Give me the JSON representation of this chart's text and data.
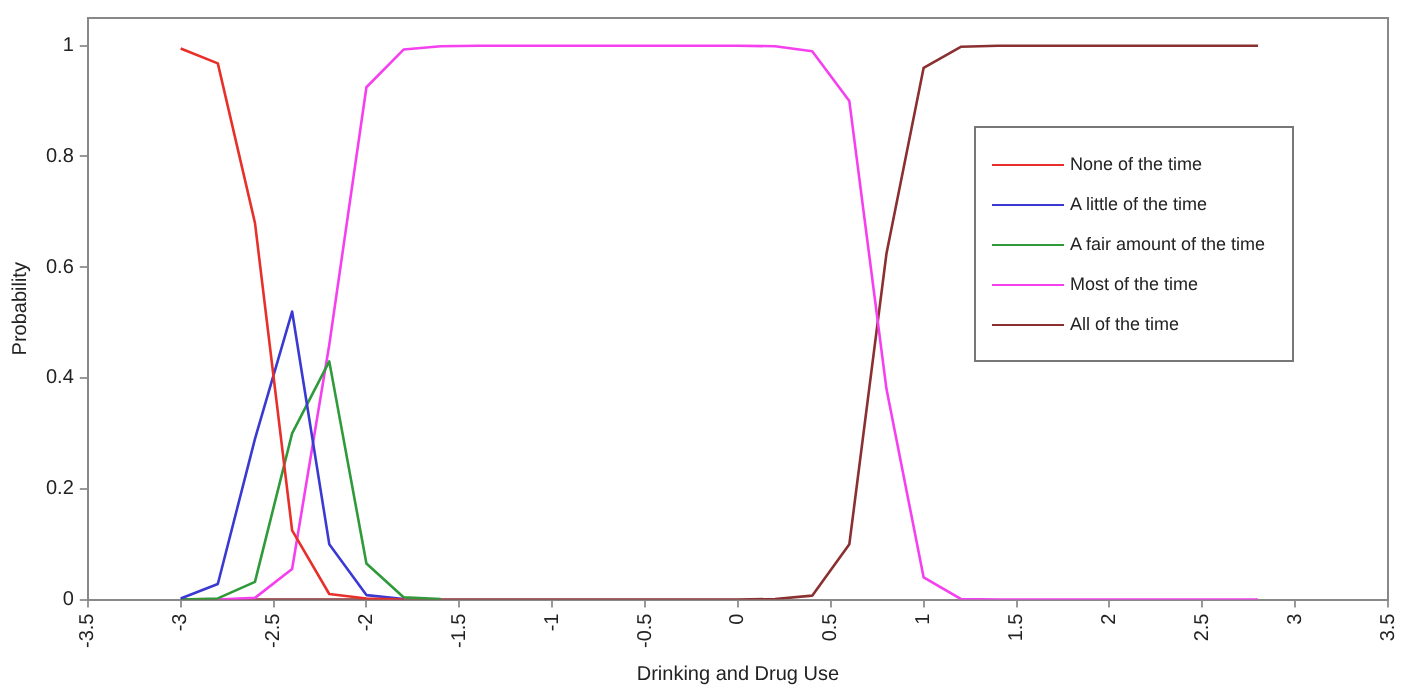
{
  "chart_data": {
    "type": "line",
    "xlabel": "Drinking and Drug Use",
    "ylabel": "Probability",
    "x": [
      -3,
      -2.8,
      -2.6,
      -2.4,
      -2.2,
      -2,
      -1.8,
      -1.6,
      -1.4,
      -1.2,
      -1,
      -0.8,
      -0.6,
      -0.4,
      -0.2,
      0,
      0.2,
      0.4,
      0.6,
      0.8,
      1,
      1.2,
      1.4,
      1.6,
      1.8,
      2,
      2.2,
      2.4,
      2.6,
      2.8
    ],
    "xlim": [
      -3.5,
      3.5
    ],
    "xticks": [
      -3.5,
      -3,
      -2.5,
      -2,
      -1.5,
      -1,
      -0.5,
      0,
      0.5,
      1,
      1.5,
      2,
      2.5,
      3,
      3.5
    ],
    "ylim": [
      0,
      1.05
    ],
    "yticks": [
      0,
      0.2,
      0.4,
      0.6,
      0.8,
      1
    ],
    "legend": "right",
    "grid": false,
    "marker": "none",
    "line_style": "solid",
    "series": [
      {
        "name": "None of the time",
        "color": "#e8302a",
        "values": [
          0.995,
          0.968,
          0.68,
          0.125,
          0.01,
          0.002,
          0,
          null,
          null,
          null,
          null,
          null,
          null,
          null,
          null,
          null,
          null,
          null,
          null,
          null,
          null,
          null,
          null,
          null,
          null,
          null,
          null,
          null,
          null,
          null
        ]
      },
      {
        "name": "A little of the time",
        "color": "#3a3ad2",
        "values": [
          0.002,
          0.028,
          0.29,
          0.52,
          0.1,
          0.008,
          0.001,
          null,
          null,
          null,
          null,
          null,
          null,
          null,
          null,
          null,
          null,
          null,
          null,
          null,
          null,
          null,
          null,
          null,
          null,
          null,
          null,
          null,
          null,
          null
        ]
      },
      {
        "name": "A fair amount of the time",
        "color": "#2e9a3a",
        "values": [
          0,
          0.002,
          0.032,
          0.3,
          0.43,
          0.065,
          0.004,
          0.001,
          null,
          null,
          null,
          null,
          null,
          null,
          null,
          null,
          null,
          null,
          null,
          null,
          null,
          null,
          null,
          null,
          null,
          null,
          null,
          null,
          null,
          null
        ]
      },
      {
        "name": "Most of the time",
        "color": "#f540f0",
        "values": [
          null,
          0,
          0.003,
          0.055,
          0.46,
          0.925,
          0.993,
          0.999,
          1,
          1,
          1,
          1,
          1,
          1,
          1,
          1,
          0.999,
          0.99,
          0.9,
          0.38,
          0.04,
          0.001,
          0,
          0,
          0,
          0,
          0,
          0,
          0,
          0
        ]
      },
      {
        "name": "All of the time",
        "color": "#8b3030",
        "values": [
          0,
          0,
          0,
          0,
          0,
          0,
          0,
          0,
          0,
          0,
          0,
          0,
          0,
          0,
          0,
          0,
          0.001,
          0.007,
          0.1,
          0.625,
          0.96,
          0.998,
          1,
          1,
          1,
          1,
          1,
          1,
          1,
          1
        ]
      }
    ]
  }
}
